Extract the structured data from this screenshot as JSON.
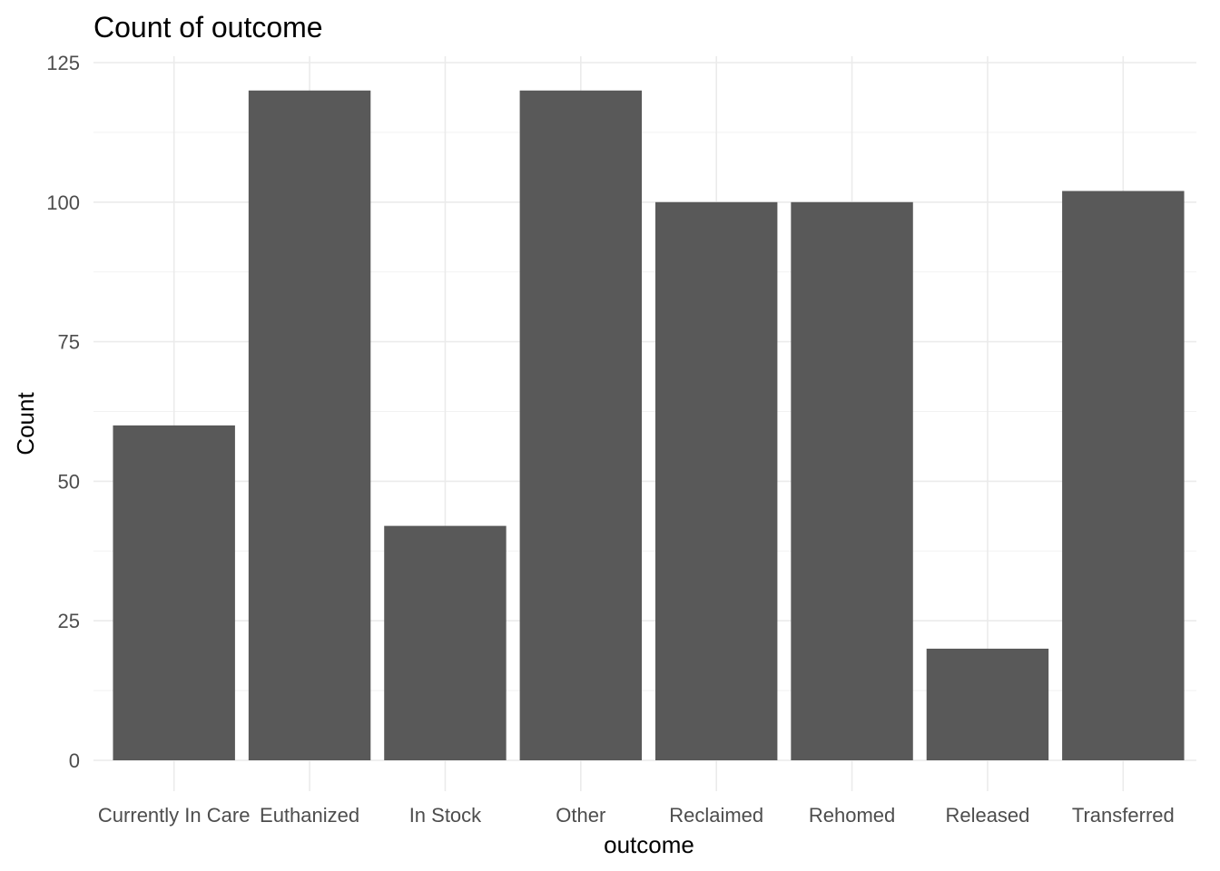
{
  "chart_data": {
    "type": "bar",
    "title": "Count of outcome",
    "xlabel": "outcome",
    "ylabel": "Count",
    "categories": [
      "Currently In Care",
      "Euthanized",
      "In Stock",
      "Other",
      "Reclaimed",
      "Rehomed",
      "Released",
      "Transferred"
    ],
    "values": [
      60,
      120,
      42,
      120,
      100,
      100,
      20,
      102
    ],
    "ylim": [
      0,
      125
    ],
    "yticks": [
      0,
      25,
      50,
      75,
      100,
      125
    ],
    "ytick_labels": [
      "0",
      "25",
      "50",
      "75",
      "100",
      "125"
    ],
    "grid": true,
    "bar_color": "#595959",
    "legend": "none"
  }
}
